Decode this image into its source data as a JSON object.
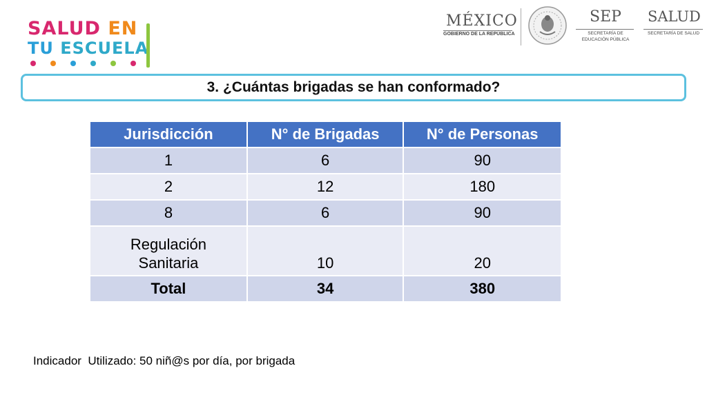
{
  "logo": {
    "line1_a": "SALUD",
    "line1_b": "EN",
    "line2_a": "TU",
    "line2_b": "ESCUELA",
    "dot_colors": [
      "#d8286e",
      "#f08a1c",
      "#2a9fd8",
      "#2fa9c9",
      "#8dc63f",
      "#d8286e"
    ]
  },
  "gov_logos": {
    "mexico": "MÉXICO",
    "mexico_sub": "GOBIERNO DE LA REPÚBLICA",
    "sep": "SEP",
    "sep_sub": "SECRETARÍA DE EDUCACIÓN PÚBLICA",
    "salud": "SALUD",
    "salud_sub": "SECRETARÍA DE SALUD"
  },
  "question": "3. ¿Cuántas brigadas se han conformado?",
  "table": {
    "headers": [
      "Jurisdicción",
      "N° de Brigadas",
      "N° de Personas"
    ],
    "rows": [
      [
        "1",
        "6",
        "90"
      ],
      [
        "2",
        "12",
        "180"
      ],
      [
        "8",
        "6",
        "90"
      ],
      [
        "Regulación Sanitaria",
        "10",
        "20"
      ]
    ],
    "total": [
      "Total",
      "34",
      "380"
    ]
  },
  "indicator": "Indicador  Utilizado: 50 niñ@s por día, por brigada",
  "colors": {
    "header_bg": "#4472c4",
    "row_odd": "#cfd5ea",
    "row_even": "#e9ebf5",
    "question_border": "#5cc1df"
  }
}
